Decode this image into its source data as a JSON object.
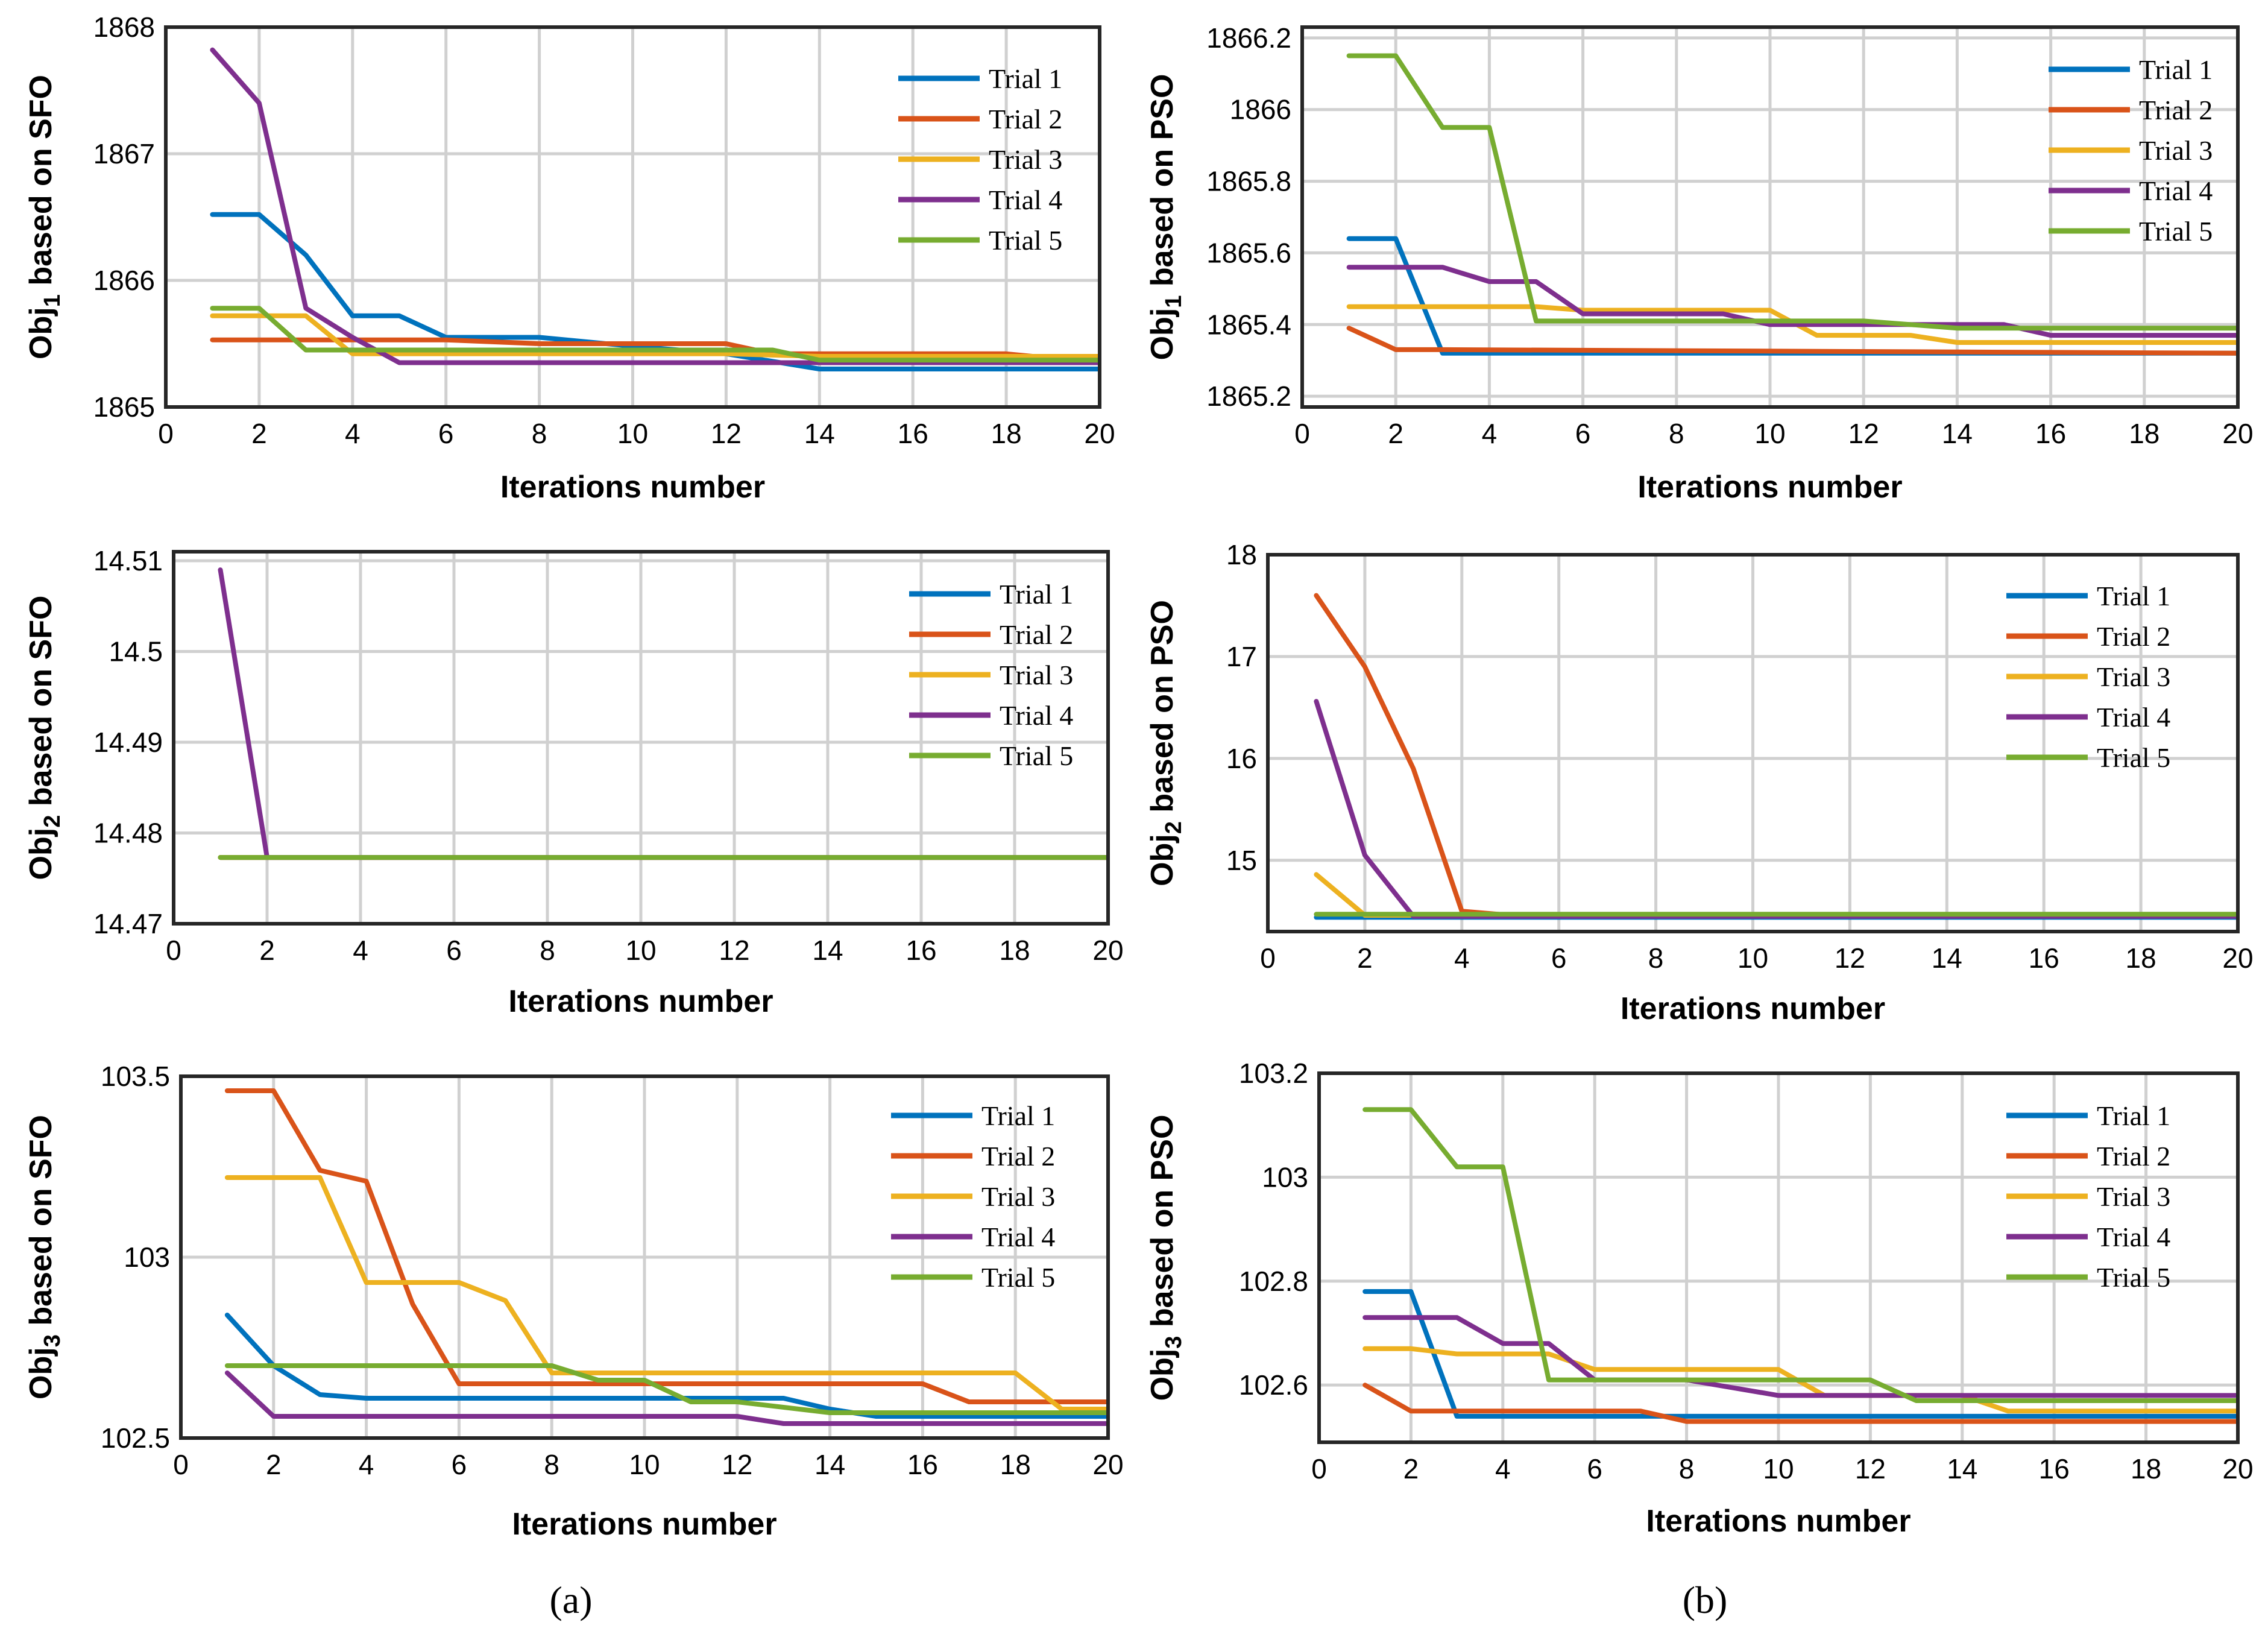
{
  "colors": [
    "#0072BD",
    "#D95319",
    "#EDB120",
    "#7E2F8E",
    "#77AC30"
  ],
  "series_names": [
    "Trial 1",
    "Trial 2",
    "Trial 3",
    "Trial 4",
    "Trial 5"
  ],
  "captions": {
    "a": "(a)",
    "b": "(b)"
  },
  "chart_data": [
    {
      "id": "a1",
      "type": "line",
      "title": "",
      "xlabel": "Iterations number",
      "ylabel_base": "Obj",
      "ylabel_sub": "1",
      "ylabel_rest": " based on SFO",
      "xlim": [
        0,
        20
      ],
      "ylim": [
        1865,
        1868
      ],
      "xticks": [
        0,
        2,
        4,
        6,
        8,
        10,
        12,
        14,
        16,
        18,
        20
      ],
      "yticks": [
        1865,
        1866,
        1867,
        1868
      ],
      "ytick_labels": [
        "1865",
        "1866",
        "1867",
        "1868"
      ],
      "legend": "top-right",
      "series": [
        {
          "name": "Trial 1",
          "x": [
            1,
            2,
            3,
            4,
            5,
            6,
            8,
            10,
            12,
            14,
            16,
            18,
            20
          ],
          "y": [
            1866.52,
            1866.52,
            1866.2,
            1865.72,
            1865.72,
            1865.55,
            1865.55,
            1865.48,
            1865.42,
            1865.3,
            1865.3,
            1865.3,
            1865.3
          ]
        },
        {
          "name": "Trial 2",
          "x": [
            1,
            2,
            4,
            6,
            8,
            10,
            12,
            13,
            14,
            16,
            18,
            20
          ],
          "y": [
            1865.53,
            1865.53,
            1865.53,
            1865.53,
            1865.5,
            1865.5,
            1865.5,
            1865.42,
            1865.42,
            1865.42,
            1865.42,
            1865.35
          ]
        },
        {
          "name": "Trial 3",
          "x": [
            1,
            2,
            3,
            4,
            6,
            8,
            10,
            12,
            14,
            16,
            18,
            20
          ],
          "y": [
            1865.72,
            1865.72,
            1865.72,
            1865.42,
            1865.42,
            1865.42,
            1865.42,
            1865.42,
            1865.4,
            1865.4,
            1865.4,
            1865.4
          ]
        },
        {
          "name": "Trial 4",
          "x": [
            1,
            2,
            3,
            4,
            5,
            6,
            8,
            10,
            12,
            14,
            16,
            18,
            20
          ],
          "y": [
            1867.82,
            1867.4,
            1865.78,
            1865.55,
            1865.35,
            1865.35,
            1865.35,
            1865.35,
            1865.35,
            1865.35,
            1865.35,
            1865.35,
            1865.35
          ]
        },
        {
          "name": "Trial 5",
          "x": [
            1,
            2,
            3,
            4,
            6,
            8,
            10,
            12,
            13,
            14,
            16,
            18,
            20
          ],
          "y": [
            1865.78,
            1865.78,
            1865.45,
            1865.45,
            1865.45,
            1865.45,
            1865.45,
            1865.45,
            1865.45,
            1865.37,
            1865.37,
            1865.37,
            1865.37
          ]
        }
      ]
    },
    {
      "id": "b1",
      "type": "line",
      "title": "",
      "xlabel": "Iterations number",
      "ylabel_base": "Obj",
      "ylabel_sub": "1",
      "ylabel_rest": " based on PSO",
      "xlim": [
        0,
        20
      ],
      "ylim": [
        1865.17,
        1866.23
      ],
      "xticks": [
        0,
        2,
        4,
        6,
        8,
        10,
        12,
        14,
        16,
        18,
        20
      ],
      "yticks": [
        1865.2,
        1865.4,
        1865.6,
        1865.8,
        1866,
        1866.2
      ],
      "ytick_labels": [
        "1865.2",
        "1865.4",
        "1865.6",
        "1865.8",
        "1866",
        "1866.2"
      ],
      "legend": "top-right",
      "series": [
        {
          "name": "Trial 1",
          "x": [
            1,
            2,
            3,
            20
          ],
          "y": [
            1865.64,
            1865.64,
            1865.32,
            1865.32
          ]
        },
        {
          "name": "Trial 2",
          "x": [
            1,
            2,
            3,
            20
          ],
          "y": [
            1865.39,
            1865.33,
            1865.33,
            1865.32
          ]
        },
        {
          "name": "Trial 3",
          "x": [
            1,
            2,
            3,
            5,
            6,
            8,
            9,
            10,
            11,
            13,
            14,
            16,
            18,
            20
          ],
          "y": [
            1865.45,
            1865.45,
            1865.45,
            1865.45,
            1865.44,
            1865.44,
            1865.44,
            1865.44,
            1865.37,
            1865.37,
            1865.35,
            1865.35,
            1865.35,
            1865.35
          ]
        },
        {
          "name": "Trial 4",
          "x": [
            1,
            2,
            3,
            4,
            5,
            6,
            8,
            9,
            10,
            12,
            15,
            16,
            18,
            20
          ],
          "y": [
            1865.56,
            1865.56,
            1865.56,
            1865.52,
            1865.52,
            1865.43,
            1865.43,
            1865.43,
            1865.4,
            1865.4,
            1865.4,
            1865.37,
            1865.37,
            1865.37
          ]
        },
        {
          "name": "Trial 5",
          "x": [
            1,
            2,
            3,
            4,
            5,
            6,
            8,
            10,
            12,
            14,
            16,
            18,
            20
          ],
          "y": [
            1866.15,
            1866.15,
            1865.95,
            1865.95,
            1865.41,
            1865.41,
            1865.41,
            1865.41,
            1865.41,
            1865.39,
            1865.39,
            1865.39,
            1865.39
          ]
        }
      ]
    },
    {
      "id": "a2",
      "type": "line",
      "title": "",
      "xlabel": "Iterations number",
      "ylabel_base": "Obj",
      "ylabel_sub": "2",
      "ylabel_rest": " based on SFO",
      "xlim": [
        0,
        20
      ],
      "ylim": [
        14.47,
        14.511
      ],
      "xticks": [
        0,
        2,
        4,
        6,
        8,
        10,
        12,
        14,
        16,
        18,
        20
      ],
      "yticks": [
        14.47,
        14.48,
        14.49,
        14.5,
        14.51
      ],
      "ytick_labels": [
        "14.47",
        "14.48",
        "14.49",
        "14.5",
        "14.51"
      ],
      "legend": "top-right",
      "series": [
        {
          "name": "Trial 1",
          "x": [
            1,
            20
          ],
          "y": [
            14.4773,
            14.4773
          ]
        },
        {
          "name": "Trial 2",
          "x": [
            1,
            20
          ],
          "y": [
            14.4773,
            14.4773
          ]
        },
        {
          "name": "Trial 3",
          "x": [
            1,
            20
          ],
          "y": [
            14.4773,
            14.4773
          ]
        },
        {
          "name": "Trial 4",
          "x": [
            1,
            2,
            20
          ],
          "y": [
            14.509,
            14.4773,
            14.4773
          ]
        },
        {
          "name": "Trial 5",
          "x": [
            1,
            20
          ],
          "y": [
            14.4773,
            14.4773
          ]
        }
      ]
    },
    {
      "id": "b2",
      "type": "line",
      "title": "",
      "xlabel": "Iterations number",
      "ylabel_base": "Obj",
      "ylabel_sub": "2",
      "ylabel_rest": " based on PSO",
      "xlim": [
        0,
        20
      ],
      "ylim": [
        14.3,
        18
      ],
      "xticks": [
        0,
        2,
        4,
        6,
        8,
        10,
        12,
        14,
        16,
        18,
        20
      ],
      "yticks": [
        15,
        16,
        17,
        18
      ],
      "ytick_labels": [
        "15",
        "16",
        "17",
        "18"
      ],
      "legend": "top-right",
      "series": [
        {
          "name": "Trial 1",
          "x": [
            1,
            20
          ],
          "y": [
            14.44,
            14.44
          ]
        },
        {
          "name": "Trial 2",
          "x": [
            1,
            2,
            3,
            4,
            5,
            20
          ],
          "y": [
            17.6,
            16.9,
            15.9,
            14.5,
            14.46,
            14.46
          ]
        },
        {
          "name": "Trial 3",
          "x": [
            1,
            2,
            20
          ],
          "y": [
            14.86,
            14.46,
            14.46
          ]
        },
        {
          "name": "Trial 4",
          "x": [
            1,
            2,
            3,
            4,
            20
          ],
          "y": [
            16.56,
            15.05,
            14.45,
            14.45,
            14.45
          ]
        },
        {
          "name": "Trial 5",
          "x": [
            1,
            20
          ],
          "y": [
            14.47,
            14.47
          ]
        }
      ]
    },
    {
      "id": "a3",
      "type": "line",
      "title": "",
      "xlabel": "Iterations number",
      "ylabel_base": "Obj",
      "ylabel_sub": "3",
      "ylabel_rest": " based on SFO",
      "xlim": [
        0,
        20
      ],
      "ylim": [
        102.5,
        103.5
      ],
      "xticks": [
        0,
        2,
        4,
        6,
        8,
        10,
        12,
        14,
        16,
        18,
        20
      ],
      "yticks": [
        102.5,
        103,
        103.5
      ],
      "ytick_labels": [
        "102.5",
        "103",
        "103.5"
      ],
      "legend": "top-right",
      "series": [
        {
          "name": "Trial 1",
          "x": [
            1,
            2,
            3,
            4,
            6,
            8,
            10,
            12,
            13,
            14,
            15,
            16,
            18,
            20
          ],
          "y": [
            102.84,
            102.7,
            102.62,
            102.61,
            102.61,
            102.61,
            102.61,
            102.61,
            102.61,
            102.58,
            102.56,
            102.56,
            102.56,
            102.56
          ]
        },
        {
          "name": "Trial 2",
          "x": [
            1,
            2,
            3,
            4,
            5,
            6,
            8,
            10,
            12,
            14,
            16,
            17,
            18,
            20
          ],
          "y": [
            103.46,
            103.46,
            103.24,
            103.21,
            102.87,
            102.65,
            102.65,
            102.65,
            102.65,
            102.65,
            102.65,
            102.6,
            102.6,
            102.6
          ]
        },
        {
          "name": "Trial 3",
          "x": [
            1,
            2,
            3,
            4,
            5,
            6,
            7,
            8,
            10,
            12,
            14,
            16,
            18,
            19,
            20
          ],
          "y": [
            103.22,
            103.22,
            103.22,
            102.93,
            102.93,
            102.93,
            102.88,
            102.68,
            102.68,
            102.68,
            102.68,
            102.68,
            102.68,
            102.58,
            102.58
          ]
        },
        {
          "name": "Trial 4",
          "x": [
            1,
            2,
            4,
            6,
            8,
            10,
            12,
            13,
            14,
            16,
            18,
            20
          ],
          "y": [
            102.68,
            102.56,
            102.56,
            102.56,
            102.56,
            102.56,
            102.56,
            102.54,
            102.54,
            102.54,
            102.54,
            102.54
          ]
        },
        {
          "name": "Trial 5",
          "x": [
            1,
            2,
            4,
            6,
            8,
            9,
            10,
            11,
            12,
            14,
            16,
            18,
            20
          ],
          "y": [
            102.7,
            102.7,
            102.7,
            102.7,
            102.7,
            102.66,
            102.66,
            102.6,
            102.6,
            102.57,
            102.57,
            102.57,
            102.57
          ]
        }
      ]
    },
    {
      "id": "b3",
      "type": "line",
      "title": "",
      "xlabel": "Iterations number",
      "ylabel_base": "Obj",
      "ylabel_sub": "3",
      "ylabel_rest": " based on PSO",
      "xlim": [
        0,
        20
      ],
      "ylim": [
        102.49,
        103.2
      ],
      "xticks": [
        0,
        2,
        4,
        6,
        8,
        10,
        12,
        14,
        16,
        18,
        20
      ],
      "yticks": [
        102.6,
        102.8,
        103,
        103.2
      ],
      "ytick_labels": [
        "102.6",
        "102.8",
        "103",
        "103.2"
      ],
      "legend": "top-right",
      "series": [
        {
          "name": "Trial 1",
          "x": [
            1,
            2,
            3,
            8,
            20
          ],
          "y": [
            102.78,
            102.78,
            102.54,
            102.54,
            102.54
          ]
        },
        {
          "name": "Trial 2",
          "x": [
            1,
            2,
            7,
            8,
            20
          ],
          "y": [
            102.6,
            102.55,
            102.55,
            102.53,
            102.53
          ]
        },
        {
          "name": "Trial 3",
          "x": [
            1,
            2,
            3,
            5,
            6,
            8,
            10,
            11,
            12,
            14,
            15,
            16,
            18,
            20
          ],
          "y": [
            102.67,
            102.67,
            102.66,
            102.66,
            102.63,
            102.63,
            102.63,
            102.58,
            102.58,
            102.58,
            102.55,
            102.55,
            102.55,
            102.55
          ]
        },
        {
          "name": "Trial 4",
          "x": [
            1,
            2,
            3,
            4,
            5,
            6,
            8,
            10,
            12,
            14,
            16,
            18,
            20
          ],
          "y": [
            102.73,
            102.73,
            102.73,
            102.68,
            102.68,
            102.61,
            102.61,
            102.58,
            102.58,
            102.58,
            102.58,
            102.58,
            102.58
          ]
        },
        {
          "name": "Trial 5",
          "x": [
            1,
            2,
            3,
            4,
            5,
            6,
            8,
            10,
            12,
            13,
            14,
            16,
            18,
            20
          ],
          "y": [
            103.13,
            103.13,
            103.02,
            103.02,
            102.61,
            102.61,
            102.61,
            102.61,
            102.61,
            102.57,
            102.57,
            102.57,
            102.57,
            102.57
          ]
        }
      ]
    }
  ]
}
